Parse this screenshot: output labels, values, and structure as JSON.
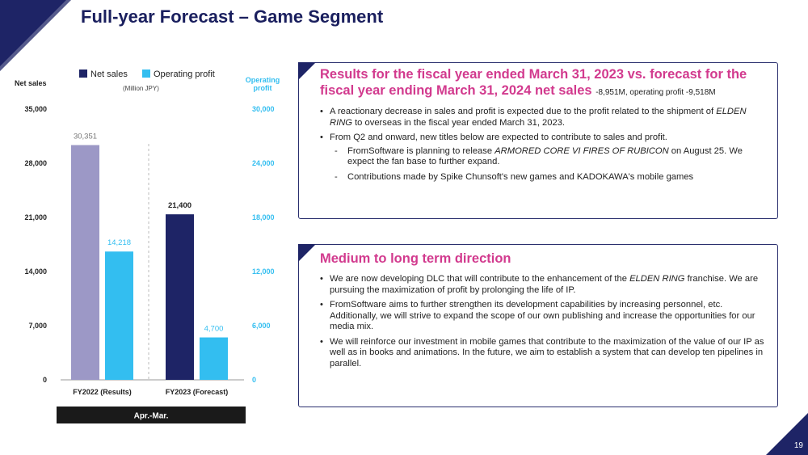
{
  "header": {
    "title": "Full-year Forecast – Game Segment"
  },
  "page_number": "19",
  "colors": {
    "accent": "#1a1f5e",
    "net_sales_results": "#9c98c6",
    "net_sales_forecast": "#1e2466",
    "operating_profit": "#33bef0",
    "highlight": "#d23a8e"
  },
  "chart_data": {
    "type": "bar",
    "categories": [
      "FY2022 (Results)",
      "FY2023 (Forecast)"
    ],
    "period_label": "Apr.-Mar.",
    "unit_label": "(Million JPY)",
    "legend_placement": "top",
    "series": [
      {
        "name": "Net sales",
        "axis": "left",
        "values": [
          30351,
          21400
        ],
        "labels": [
          "30,351",
          "21,400"
        ]
      },
      {
        "name": "Operating profit",
        "axis": "right",
        "values": [
          14218,
          4700
        ],
        "labels": [
          "14,218",
          "4,700"
        ]
      }
    ],
    "left_axis": {
      "label": "Net sales",
      "ylim": [
        0,
        35000
      ],
      "ticks": [
        0,
        7000,
        14000,
        21000,
        28000,
        35000
      ],
      "tick_labels": [
        "0",
        "7,000",
        "14,000",
        "21,000",
        "28,000",
        "35,000"
      ]
    },
    "right_axis": {
      "label": "Operating profit",
      "ylim": [
        0,
        30000
      ],
      "ticks": [
        0,
        6000,
        12000,
        18000,
        24000,
        30000
      ],
      "tick_labels": [
        "0",
        "6,000",
        "12,000",
        "18,000",
        "24,000",
        "30,000"
      ]
    },
    "grid": false
  },
  "panel1": {
    "title": "Results for the fiscal year ended March 31, 2023 vs. forecast for the fiscal year ending March 31, 2024 net sales",
    "note": "-8,951M, operating profit -9,518M",
    "bullet1_a": "A reactionary decrease in sales and profit is expected due to the profit related to the shipment of ",
    "bullet1_em": "ELDEN RING",
    "bullet1_b": " to overseas in the fiscal year ended March 31, 2023.",
    "bullet2": "From Q2 and onward, new titles below are expected to contribute to sales and profit.",
    "sub1_a": "FromSoftware is planning to release ",
    "sub1_em": "ARMORED CORE VI FIRES OF RUBICON",
    "sub1_b": " on August 25. We expect the fan base to further expand.",
    "sub2": "Contributions made by Spike Chunsoft's new games and KADOKAWA's mobile games"
  },
  "panel2": {
    "title": "Medium to long term direction",
    "bullet1_a": "We are now developing DLC that will contribute to the enhancement of the ",
    "bullet1_em": "ELDEN RING",
    "bullet1_b": " franchise. We are pursuing the maximization of profit by prolonging the life of IP.",
    "bullet2": "FromSoftware aims to further strengthen its development capabilities by increasing personnel, etc. Additionally, we will strive to expand the scope of our own publishing and increase the opportunities for our media mix.",
    "bullet3": "We will reinforce our investment in mobile games that contribute to the maximization of the value of our IP as well as in books and animations. In the future, we aim to establish a system that can develop ten pipelines in parallel."
  }
}
